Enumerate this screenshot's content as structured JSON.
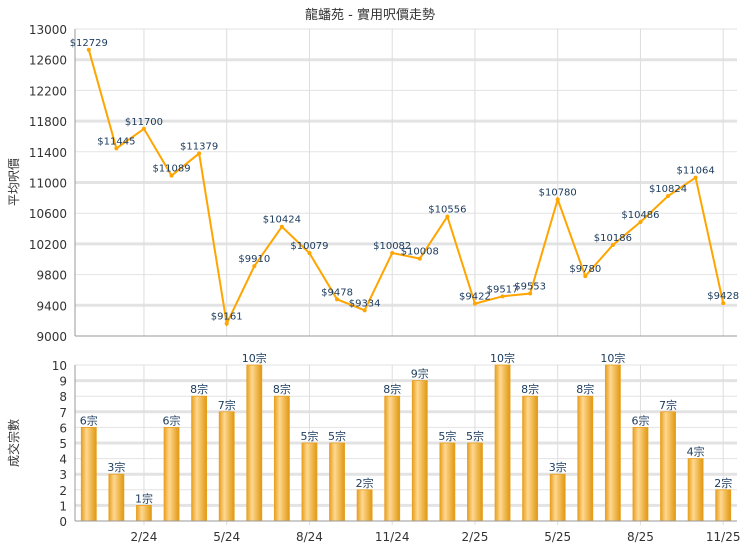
{
  "chart_data": [
    {
      "type": "line",
      "title": "龍蟠苑 - 實用呎價走勢",
      "ylabel": "平均呎價",
      "ylim": [
        9000,
        13000
      ],
      "yticks": [
        9000,
        9400,
        9800,
        10200,
        10600,
        11000,
        11400,
        11800,
        12200,
        12600,
        13000
      ],
      "values": [
        12729,
        11445,
        11700,
        11089,
        11379,
        9161,
        9910,
        10424,
        10079,
        9478,
        9334,
        10082,
        10008,
        10556,
        9422,
        9517,
        9553,
        10780,
        9780,
        10186,
        10486,
        10824,
        11064,
        9428
      ],
      "labels": [
        "$12729",
        "$11445",
        "$11700",
        "$11089",
        "$11379",
        "$9161",
        "$9910",
        "$10424",
        "$10079",
        "$9478",
        "$9334",
        "$10082",
        "$10008",
        "$10556",
        "$9422",
        "$9517",
        "$9553",
        "$10780",
        "$9780",
        "$10186",
        "$10486",
        "$10824",
        "$11064",
        "$9428"
      ],
      "color": "#FFA500"
    },
    {
      "type": "bar",
      "ylabel": "成交宗數",
      "ylim": [
        0,
        10
      ],
      "yticks": [
        0,
        1,
        2,
        3,
        4,
        5,
        6,
        7,
        8,
        9,
        10
      ],
      "values": [
        6,
        3,
        1,
        6,
        8,
        7,
        10,
        8,
        5,
        5,
        2,
        8,
        9,
        5,
        5,
        10,
        8,
        3,
        8,
        10,
        6,
        7,
        4,
        2
      ],
      "labels": [
        "6宗",
        "3宗",
        "1宗",
        "6宗",
        "8宗",
        "7宗",
        "10宗",
        "8宗",
        "5宗",
        "5宗",
        "2宗",
        "8宗",
        "9宗",
        "5宗",
        "5宗",
        "10宗",
        "8宗",
        "3宗",
        "8宗",
        "10宗",
        "6宗",
        "7宗",
        "4宗",
        "2宗"
      ],
      "x_tick_labels": [
        {
          "index": 2,
          "label": "2/24"
        },
        {
          "index": 5,
          "label": "5/24"
        },
        {
          "index": 8,
          "label": "8/24"
        },
        {
          "index": 11,
          "label": "11/24"
        },
        {
          "index": 14,
          "label": "2/25"
        },
        {
          "index": 17,
          "label": "5/25"
        },
        {
          "index": 20,
          "label": "8/25"
        },
        {
          "index": 23,
          "label": "11/25"
        }
      ],
      "color": "#F0B030"
    }
  ]
}
